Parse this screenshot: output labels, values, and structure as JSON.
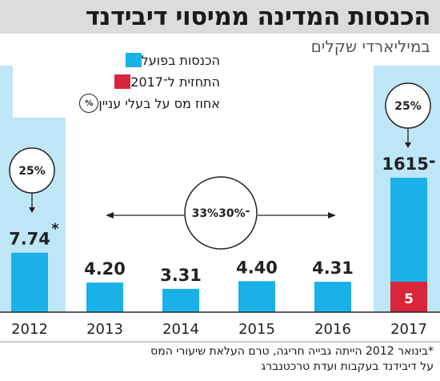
{
  "title": "הכנסות המדינה ממיסוי דיבידנד",
  "subtitle": "במיליארדי שקלים",
  "colors": {
    "actual": "#1ab1e8",
    "forecast": "#d9263a",
    "highlight_bg": "#bfe6f6",
    "title_bg": "#dcdcdc"
  },
  "legend": [
    {
      "label": "הכנסות בפועל",
      "type": "swatch",
      "color": "#1ab1e8"
    },
    {
      "label": "התחזית ל־2017",
      "type": "swatch",
      "color": "#d9263a"
    },
    {
      "label": "אחוז מס על בעלי עניין",
      "type": "circle",
      "symbol": "%"
    }
  ],
  "chart_data": {
    "type": "bar",
    "title": "הכנסות המדינה ממיסוי דיבידנד",
    "subtitle": "במיליארדי שקלים",
    "categories": [
      "2012",
      "2013",
      "2014",
      "2015",
      "2016",
      "2017"
    ],
    "series": [
      {
        "name": "הכנסות בפועל",
        "values": [
          7.74,
          4.2,
          3.31,
          4.4,
          4.31,
          5
        ]
      },
      {
        "name": "התחזית ל־2017",
        "values": [
          null,
          null,
          null,
          null,
          null,
          15
        ]
      }
    ],
    "data_labels": [
      "7.74",
      "4.20",
      "3.31",
      "4.40",
      "4.31",
      "16־15"
    ],
    "forecast_label": "5",
    "footnote_marker": "*",
    "ylim": [
      0,
      17
    ],
    "tax_rates": [
      {
        "label": "25%",
        "applies_to": [
          "2012"
        ]
      },
      {
        "label": "33%־30%",
        "applies_to": [
          "2013",
          "2014",
          "2015",
          "2016"
        ]
      },
      {
        "label": "25%",
        "applies_to": [
          "2017"
        ]
      }
    ]
  },
  "footnote": [
    "*בינואר 2012 הייתה גבייה חריגה, טרם העלאת שיעורי המס",
    "על דיבידנד בעקבות ועדת טרכטנברג"
  ]
}
